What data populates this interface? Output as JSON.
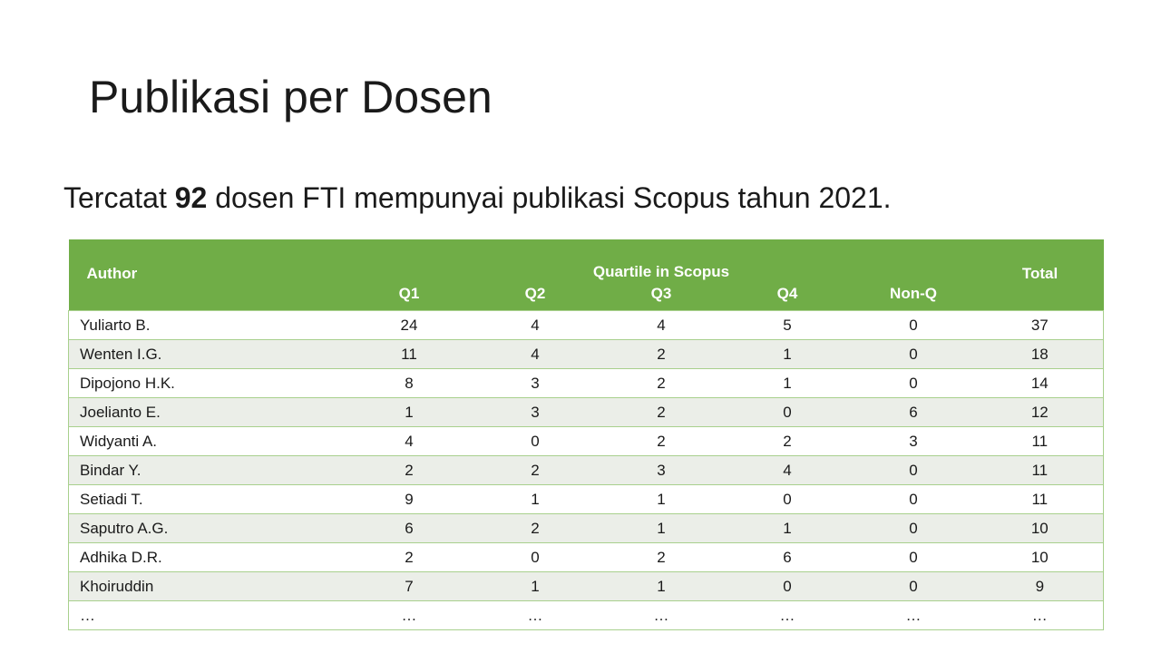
{
  "slide": {
    "title": "Publikasi per Dosen",
    "subtitle_before": "Tercatat ",
    "subtitle_bold": "92",
    "subtitle_after": " dosen FTI mempunyai publikasi Scopus tahun 2021."
  },
  "colors": {
    "header_bg": "#70ad47",
    "row_alt_bg": "#ebeee8",
    "border": "#a8d08d"
  },
  "table": {
    "author_header": "Author",
    "group_header": "Quartile in Scopus",
    "total_header": "Total",
    "sub_headers": [
      "Q1",
      "Q2",
      "Q3",
      "Q4",
      "Non-Q"
    ],
    "rows": [
      {
        "author": "Yuliarto B.",
        "q1": "24",
        "q2": "4",
        "q3": "4",
        "q4": "5",
        "nonq": "0",
        "total": "37"
      },
      {
        "author": "Wenten I.G.",
        "q1": "11",
        "q2": "4",
        "q3": "2",
        "q4": "1",
        "nonq": "0",
        "total": "18"
      },
      {
        "author": "Dipojono H.K.",
        "q1": "8",
        "q2": "3",
        "q3": "2",
        "q4": "1",
        "nonq": "0",
        "total": "14"
      },
      {
        "author": "Joelianto E.",
        "q1": "1",
        "q2": "3",
        "q3": "2",
        "q4": "0",
        "nonq": "6",
        "total": "12"
      },
      {
        "author": "Widyanti A.",
        "q1": "4",
        "q2": "0",
        "q3": "2",
        "q4": "2",
        "nonq": "3",
        "total": "11"
      },
      {
        "author": "Bindar Y.",
        "q1": "2",
        "q2": "2",
        "q3": "3",
        "q4": "4",
        "nonq": "0",
        "total": "11"
      },
      {
        "author": "Setiadi T.",
        "q1": "9",
        "q2": "1",
        "q3": "1",
        "q4": "0",
        "nonq": "0",
        "total": "11"
      },
      {
        "author": "Saputro A.G.",
        "q1": "6",
        "q2": "2",
        "q3": "1",
        "q4": "1",
        "nonq": "0",
        "total": "10"
      },
      {
        "author": "Adhika D.R.",
        "q1": "2",
        "q2": "0",
        "q3": "2",
        "q4": "6",
        "nonq": "0",
        "total": "10"
      },
      {
        "author": "Khoiruddin",
        "q1": "7",
        "q2": "1",
        "q3": "1",
        "q4": "0",
        "nonq": "0",
        "total": "9"
      },
      {
        "author": "…",
        "q1": "…",
        "q2": "…",
        "q3": "…",
        "q4": "…",
        "nonq": "…",
        "total": "…"
      }
    ]
  }
}
